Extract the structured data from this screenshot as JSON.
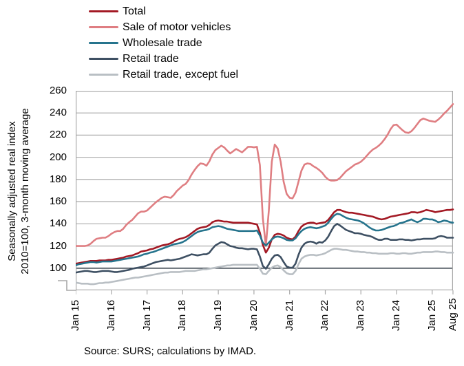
{
  "source_note": "Source: SURS; calculations by IMAD.",
  "y_axis": {
    "label_line1": "Seasonally adjusted real index",
    "label_line2": "2010=100, 3-month moving average"
  },
  "chart_data": {
    "type": "line",
    "title": "",
    "ylabel": "Seasonally adjusted real index 2010=100, 3-month moving average",
    "ylim": [
      80,
      260
    ],
    "y_ticks": [
      100,
      120,
      140,
      160,
      180,
      200,
      220,
      240,
      260
    ],
    "baseline_value": 100,
    "grid": true,
    "legend_position": "top-left",
    "x_unit": "monthly, Jan 2015 - Aug 2025",
    "n_points": 128,
    "x_ticks": [
      {
        "label": "Jan 15",
        "month": 0
      },
      {
        "label": "Jan 16",
        "month": 12
      },
      {
        "label": "Jan 17",
        "month": 24
      },
      {
        "label": "Jan 18",
        "month": 36
      },
      {
        "label": "Jan 19",
        "month": 48
      },
      {
        "label": "Jan 20",
        "month": 60
      },
      {
        "label": "Jan 21",
        "month": 72
      },
      {
        "label": "Jan 22",
        "month": 84
      },
      {
        "label": "Jan 23",
        "month": 96
      },
      {
        "label": "Jan 24",
        "month": 108
      },
      {
        "label": "Jan 25",
        "month": 120
      },
      {
        "label": "Aug 25",
        "month": 127
      }
    ],
    "colors": {
      "grid": "#A9A9A9",
      "baseline": "#3C4650"
    },
    "series": [
      {
        "id": "total",
        "name": "Total",
        "color": "#A31924",
        "values": [
          104,
          104.5,
          105,
          105.5,
          106,
          106.5,
          106.5,
          106.5,
          107,
          107,
          107,
          107.5,
          107.5,
          108,
          108.5,
          109,
          109.5,
          110.5,
          111,
          111.5,
          112.5,
          113.5,
          115,
          115.5,
          116,
          117,
          117.5,
          118.5,
          119.5,
          120.5,
          121,
          121.5,
          122.5,
          124,
          125.5,
          126.5,
          127,
          128,
          129.5,
          131.5,
          133.5,
          135.5,
          136.5,
          137,
          137.5,
          139,
          141.5,
          142.5,
          143,
          142.5,
          142,
          142,
          141.5,
          141,
          141,
          141,
          141,
          141,
          141,
          140.5,
          140,
          139.5,
          132,
          121,
          114,
          118.5,
          126,
          130,
          131,
          130.5,
          129.5,
          127.5,
          126.5,
          126,
          128.5,
          133.5,
          137.5,
          139.5,
          140.5,
          141,
          141,
          140,
          140.5,
          141,
          141.5,
          143.5,
          147,
          150.5,
          152.5,
          152.5,
          151.5,
          150.5,
          150,
          150,
          149.5,
          149,
          148.5,
          148,
          147.5,
          147,
          146.5,
          145.5,
          144.5,
          144,
          144.5,
          145.5,
          146.5,
          147,
          147.5,
          148,
          148.5,
          149,
          149.5,
          150.5,
          150.5,
          150,
          150.5,
          151.5,
          152.5,
          152,
          151.5,
          150.5,
          151,
          151.5,
          152,
          152.5,
          152.5,
          153
        ]
      },
      {
        "id": "motor-vehicles",
        "name": "Sale of motor vehicles",
        "color": "#DF7E82",
        "values": [
          120,
          120,
          120,
          120,
          120.5,
          122,
          124.5,
          126.5,
          127,
          127.5,
          127.5,
          129,
          131,
          132.5,
          133.5,
          133.5,
          135.5,
          139,
          141.5,
          143.5,
          146.5,
          149.5,
          151,
          151,
          152,
          154.5,
          157,
          159.5,
          161.5,
          163.5,
          164.5,
          164,
          163.5,
          166,
          169.5,
          172,
          174.5,
          176,
          179.5,
          184.5,
          188.5,
          192,
          194.5,
          194,
          192.5,
          196.5,
          202.5,
          206.5,
          208.5,
          210.5,
          209,
          206,
          203.5,
          205.5,
          207.5,
          206,
          204.5,
          207,
          209.5,
          209.5,
          209,
          209.5,
          193,
          145,
          120,
          152,
          196,
          211.5,
          208,
          196,
          178,
          167,
          163.5,
          163,
          168,
          178,
          188,
          193.5,
          194.5,
          194,
          192,
          190.5,
          188.5,
          186,
          182.5,
          180,
          179,
          179,
          179.5,
          181.5,
          184.5,
          187.5,
          189.5,
          191.5,
          193.5,
          194.5,
          196,
          198.5,
          201.5,
          204.5,
          207,
          208.5,
          210.5,
          213,
          216.5,
          220.5,
          225.5,
          229,
          229.5,
          227,
          224.5,
          222.5,
          222,
          223.5,
          226.5,
          230,
          233.5,
          235,
          234,
          233,
          232.5,
          232,
          234,
          236.5,
          239.5,
          242,
          245,
          248
        ]
      },
      {
        "id": "wholesale",
        "name": "Wholesale trade",
        "color": "#26748D",
        "values": [
          102.5,
          103.5,
          104,
          104.5,
          105,
          105.5,
          105.5,
          105,
          105.5,
          106,
          106,
          106,
          106,
          106.5,
          107,
          107.5,
          108,
          108.5,
          109,
          109.5,
          110,
          110.5,
          111.5,
          112.5,
          113,
          114,
          114.5,
          115.5,
          116.5,
          117.5,
          118.5,
          119.5,
          120.5,
          121.5,
          122,
          122.5,
          123.5,
          125,
          127,
          129,
          131,
          132.5,
          133.5,
          134,
          134.5,
          135.5,
          137,
          137.5,
          138,
          137.5,
          136.5,
          135.5,
          135,
          134.5,
          134,
          133.5,
          133.5,
          133.5,
          133.5,
          133.5,
          133.5,
          134,
          129.5,
          123,
          120.5,
          123,
          126,
          128,
          128.5,
          128,
          127,
          125.5,
          125,
          125,
          127,
          130.5,
          133.5,
          135.5,
          136.5,
          137,
          136.5,
          136,
          136.5,
          137.5,
          138.5,
          141,
          144.5,
          147.5,
          149,
          148.5,
          147,
          145.5,
          144.5,
          144,
          143.5,
          143,
          142,
          140.5,
          138.5,
          136.5,
          135,
          134,
          134,
          134.5,
          135.5,
          136.5,
          137.5,
          138,
          139,
          140.5,
          141,
          142,
          143,
          144,
          142.5,
          141.5,
          142.5,
          144.5,
          144.5,
          144,
          144,
          143,
          141.5,
          142,
          143,
          142.5,
          141.5,
          141
        ]
      },
      {
        "id": "retail",
        "name": "Retail trade",
        "color": "#3E5063",
        "values": [
          96,
          96.5,
          97,
          97.5,
          97.5,
          97,
          96.5,
          96.5,
          97,
          97.5,
          97.5,
          97.5,
          97,
          96.5,
          96.5,
          97,
          97.5,
          98,
          98.5,
          99.5,
          100,
          100.5,
          101,
          101.5,
          102.5,
          103.5,
          104.5,
          105.5,
          106,
          106.5,
          107,
          107.5,
          107,
          107.5,
          108,
          108.5,
          109.5,
          110.5,
          111.5,
          112.5,
          112,
          111.5,
          112,
          112.5,
          112.5,
          114,
          117.5,
          120.5,
          122,
          123.5,
          123,
          121.5,
          120,
          119.5,
          118.5,
          118,
          118,
          117.5,
          117,
          117.5,
          117.5,
          117,
          110.5,
          102,
          99.5,
          103.5,
          108.5,
          111.5,
          112,
          110,
          105.5,
          101.5,
          100.5,
          100.5,
          104,
          112,
          118.5,
          122,
          123.5,
          124,
          123.5,
          122,
          123.5,
          123,
          125,
          128.5,
          133.5,
          138,
          140,
          138.5,
          136.5,
          134.5,
          133.5,
          132.5,
          131.5,
          131.5,
          131,
          130,
          129.5,
          129,
          128,
          126.5,
          125.5,
          125.5,
          126.5,
          126.5,
          125.5,
          125.5,
          125.5,
          126,
          126,
          125.5,
          125.5,
          125,
          125.5,
          126,
          126,
          126.5,
          126.5,
          126.5,
          126.5,
          127,
          128.5,
          129,
          128.5,
          127.5,
          127.5,
          127.5
        ]
      },
      {
        "id": "retail-except-fuel",
        "name": "Retail trade, except fuel",
        "color": "#B9BFC4",
        "values": [
          87,
          86.5,
          86,
          86,
          86,
          85.5,
          85.5,
          86,
          86.5,
          86.5,
          87,
          87,
          87.5,
          88,
          88.5,
          89,
          89.5,
          90,
          90.5,
          91,
          91.5,
          91.5,
          92,
          92.5,
          93,
          93.5,
          94,
          94.5,
          95,
          95.5,
          96,
          96,
          96.5,
          96.5,
          96.5,
          96.5,
          97,
          97.5,
          97.5,
          97.5,
          97.5,
          98,
          98.5,
          99,
          99,
          99.5,
          100,
          100.5,
          101,
          101.5,
          102,
          102.5,
          102.5,
          103,
          103,
          103,
          103,
          103,
          103,
          103,
          103,
          103,
          99.5,
          95,
          94.5,
          97.5,
          100.5,
          102,
          102.5,
          101,
          98,
          95.5,
          94.5,
          94.5,
          97.5,
          103.5,
          108.5,
          110.5,
          111.5,
          112,
          112,
          111.5,
          112,
          112.5,
          113.5,
          115,
          116.5,
          117.5,
          117.5,
          117,
          116.5,
          116.5,
          116,
          115.5,
          115,
          115,
          114.5,
          114.5,
          114,
          114,
          113.5,
          113.5,
          113,
          113,
          113,
          113,
          113.5,
          113.5,
          113,
          113,
          113.5,
          113.5,
          113,
          113,
          113.5,
          114,
          114,
          114.5,
          114.5,
          114.5,
          114.5,
          115,
          115,
          114.5,
          114.5,
          114,
          114,
          114
        ]
      }
    ]
  }
}
